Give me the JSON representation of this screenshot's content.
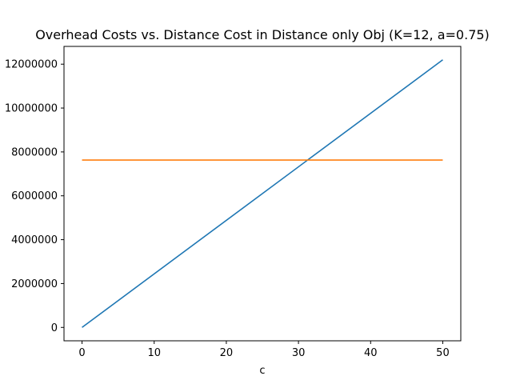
{
  "chart_data": {
    "type": "line",
    "title": "Overhead Costs vs. Distance Cost in Distance only Obj (K=12, a=0.75)",
    "xlabel": "c",
    "ylabel": "",
    "xlim": [
      -2.5,
      52.5
    ],
    "ylim": [
      -610000,
      12810000
    ],
    "x_ticks": [
      0,
      10,
      20,
      30,
      40,
      50
    ],
    "y_ticks": [
      0,
      2000000,
      4000000,
      6000000,
      8000000,
      10000000,
      12000000
    ],
    "grid": false,
    "series": [
      {
        "color": "#1f77b4",
        "x": [
          0,
          50
        ],
        "y": [
          0,
          12200000
        ]
      },
      {
        "color": "#ff7f0e",
        "x": [
          0,
          50
        ],
        "y": [
          7630000,
          7630000
        ]
      }
    ]
  }
}
